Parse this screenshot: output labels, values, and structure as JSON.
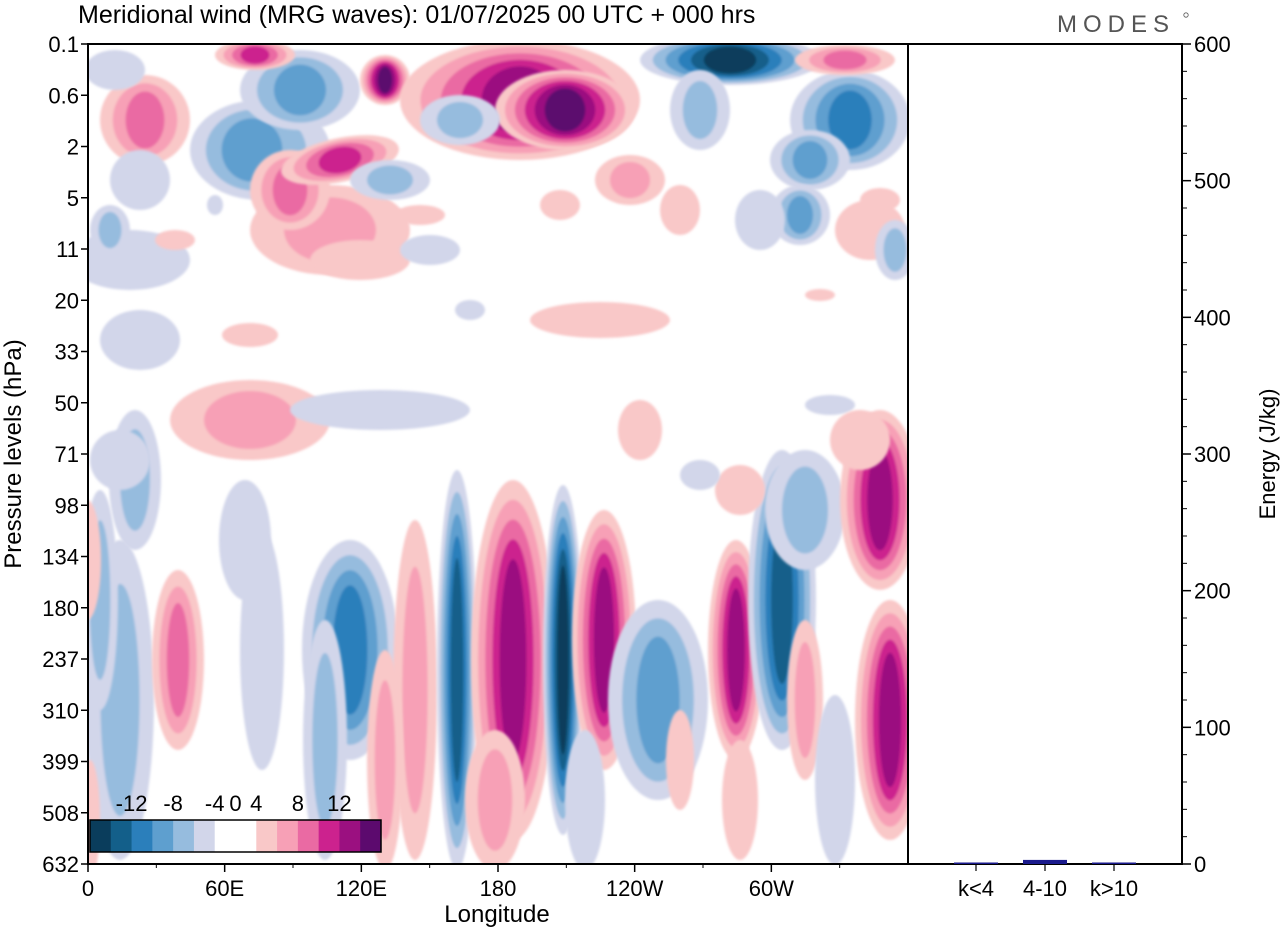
{
  "title": "Meridional wind (MRG waves):  01/07/2025  00 UTC  + 000 hrs",
  "brand": "MODES",
  "chart_data": [
    {
      "type": "heatmap",
      "xlabel": "Longitude",
      "ylabel": "Pressure levels (hPa)",
      "x_ticks": [
        "0",
        "60E",
        "120E",
        "180",
        "120W",
        "60W"
      ],
      "y_ticks": [
        "0.1",
        "0.6",
        "2",
        "5",
        "11",
        "20",
        "33",
        "50",
        "71",
        "98",
        "134",
        "180",
        "237",
        "310",
        "399",
        "508",
        "632"
      ],
      "colorbar": {
        "labels": [
          "-12",
          "-8",
          "-4",
          "0",
          "4",
          "8",
          "12"
        ],
        "colors": [
          "#0a3d5c",
          "#135f8a",
          "#2b7fbb",
          "#5e9fcf",
          "#96bcde",
          "#d2d6ea",
          "#ffffff",
          "#ffffff",
          "#f9c8c8",
          "#f7a0b6",
          "#ea6aa3",
          "#cc228e",
          "#9b1080",
          "#5c0a6e"
        ]
      },
      "features": [
        {
          "sign": "negative",
          "lon": 160,
          "level": "237",
          "value": -12
        },
        {
          "sign": "positive",
          "lon": 190,
          "level": "180",
          "value": 10
        },
        {
          "sign": "negative",
          "lon": 210,
          "level": "237",
          "value": -14
        },
        {
          "sign": "positive",
          "lon": 225,
          "level": "180",
          "value": 10
        },
        {
          "sign": "negative",
          "lon": 245,
          "level": "237",
          "value": -6
        },
        {
          "sign": "positive",
          "lon": 270,
          "level": "180",
          "value": 10
        },
        {
          "sign": "negative",
          "lon": 290,
          "level": "180",
          "value": -12
        },
        {
          "sign": "positive",
          "lon": 350,
          "level": "98",
          "value": 12
        },
        {
          "sign": "positive",
          "lon": 352,
          "level": "310",
          "value": 12
        },
        {
          "sign": "negative",
          "lon": 110,
          "level": "237",
          "value": -10
        },
        {
          "sign": "positive",
          "lon": 38,
          "level": "237",
          "value": 8
        },
        {
          "sign": "negative",
          "lon": 18,
          "level": "310",
          "value": -4
        },
        {
          "sign": "positive",
          "lon": 200,
          "level": "0.6",
          "value": 14
        },
        {
          "sign": "positive",
          "lon": 130,
          "level": "0.6",
          "value": 14
        },
        {
          "sign": "positive",
          "lon": 20,
          "level": "0.6",
          "value": 10
        },
        {
          "sign": "negative",
          "lon": 65,
          "level": "2",
          "value": -12
        },
        {
          "sign": "negative",
          "lon": 275,
          "level": "0.1",
          "value": -14
        },
        {
          "sign": "negative",
          "lon": 350,
          "level": "0.6",
          "value": -10
        },
        {
          "sign": "positive",
          "lon": 110,
          "level": "2",
          "value": 12
        },
        {
          "sign": "positive",
          "lon": 75,
          "level": "5",
          "value": 8
        },
        {
          "sign": "negative",
          "lon": 315,
          "level": "5",
          "value": -10
        }
      ]
    },
    {
      "type": "bar",
      "ylabel": "Energy (J/kg)",
      "categories": [
        "k<4",
        "4-10",
        "k>10"
      ],
      "values": [
        0.5,
        3,
        0.4
      ],
      "ylim": [
        0,
        600
      ],
      "y_ticks": [
        "0",
        "100",
        "200",
        "300",
        "400",
        "500",
        "600"
      ],
      "bar_color": "#1a1a8c"
    }
  ]
}
